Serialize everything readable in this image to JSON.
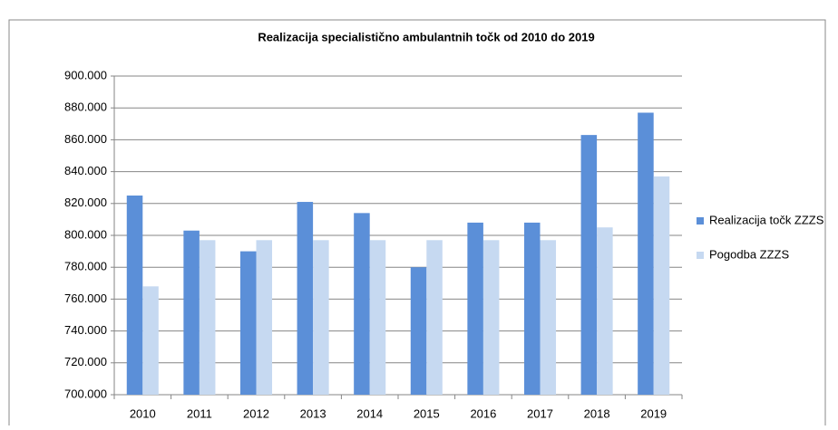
{
  "chart_data": {
    "type": "bar",
    "title": "Realizacija specialistično ambulantnih točk od 2010  do 2019",
    "categories": [
      "2010",
      "2011",
      "2012",
      "2013",
      "2014",
      "2015",
      "2016",
      "2017",
      "2018",
      "2019"
    ],
    "series": [
      {
        "name": "Realizacija točk ZZZS",
        "color": "#5b8fd8",
        "values": [
          825000,
          803000,
          790000,
          821000,
          814000,
          780000,
          808000,
          808000,
          863000,
          877000
        ]
      },
      {
        "name": "Pogodba ZZZS",
        "color": "#c6d9f1",
        "values": [
          768000,
          797000,
          797000,
          797000,
          797000,
          797000,
          797000,
          797000,
          805000,
          837000
        ]
      }
    ],
    "ylim": [
      700000,
      900000
    ],
    "yticks": [
      {
        "value": 700000,
        "label": "700.000"
      },
      {
        "value": 720000,
        "label": "720.000"
      },
      {
        "value": 740000,
        "label": "740.000"
      },
      {
        "value": 760000,
        "label": "760.000"
      },
      {
        "value": 780000,
        "label": "780.000"
      },
      {
        "value": 800000,
        "label": "800.000"
      },
      {
        "value": 820000,
        "label": "820.000"
      },
      {
        "value": 840000,
        "label": "840.000"
      },
      {
        "value": 860000,
        "label": "860.000"
      },
      {
        "value": 880000,
        "label": "880.000"
      },
      {
        "value": 900000,
        "label": "900.000"
      }
    ],
    "grid": true,
    "legend": "right"
  }
}
